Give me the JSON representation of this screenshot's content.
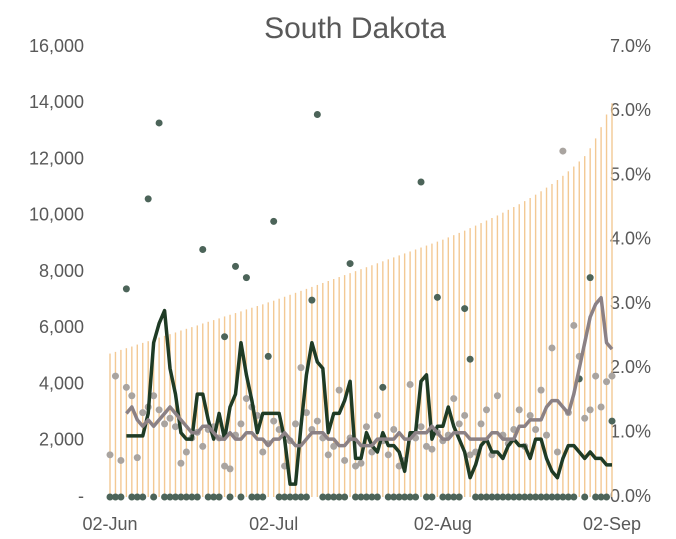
{
  "chart_data": {
    "type": "combo",
    "title": "South Dakota",
    "categories": [
      "02-Jun",
      null,
      null,
      null,
      null,
      null,
      null,
      null,
      null,
      null,
      null,
      null,
      null,
      null,
      null,
      null,
      null,
      null,
      null,
      null,
      null,
      null,
      null,
      null,
      null,
      null,
      null,
      null,
      null,
      null,
      "02-Jul",
      null,
      null,
      null,
      null,
      null,
      null,
      null,
      null,
      null,
      null,
      null,
      null,
      null,
      null,
      null,
      null,
      null,
      null,
      null,
      null,
      null,
      null,
      null,
      null,
      null,
      null,
      null,
      null,
      null,
      null,
      "02-Aug",
      null,
      null,
      null,
      null,
      null,
      null,
      null,
      null,
      null,
      null,
      null,
      null,
      null,
      null,
      null,
      null,
      null,
      null,
      null,
      null,
      null,
      null,
      null,
      null,
      null,
      null,
      null,
      null,
      null,
      null,
      "02-Sep"
    ],
    "ylim": [
      0,
      16000
    ],
    "yticks": [
      {
        "value": 0,
        "label": "-"
      },
      {
        "value": 2000,
        "label": "2,000"
      },
      {
        "value": 4000,
        "label": "4,000"
      },
      {
        "value": 6000,
        "label": "6,000"
      },
      {
        "value": 8000,
        "label": "8,000"
      },
      {
        "value": 10000,
        "label": "10,000"
      },
      {
        "value": 12000,
        "label": "12,000"
      },
      {
        "value": 14000,
        "label": "14,000"
      },
      {
        "value": 16000,
        "label": "16,000"
      }
    ],
    "y2lim": [
      0,
      7
    ],
    "y2ticks": [
      {
        "value": 0,
        "label": "0.0%"
      },
      {
        "value": 1,
        "label": "1.0%"
      },
      {
        "value": 2,
        "label": "2.0%"
      },
      {
        "value": 3,
        "label": "3.0%"
      },
      {
        "value": 4,
        "label": "4.0%"
      },
      {
        "value": 5,
        "label": "5.0%"
      },
      {
        "value": 6,
        "label": "6.0%"
      },
      {
        "value": 7,
        "label": "7.0%"
      }
    ],
    "series": [
      {
        "kind": "bar",
        "color": "#f3c994",
        "values": [
          5100,
          5160,
          5230,
          5290,
          5350,
          5420,
          5480,
          5540,
          5600,
          5670,
          5730,
          5790,
          5850,
          5920,
          5980,
          6040,
          6100,
          6170,
          6230,
          6290,
          6350,
          6420,
          6480,
          6540,
          6600,
          6670,
          6730,
          6790,
          6850,
          6920,
          6980,
          7050,
          7120,
          7190,
          7260,
          7330,
          7400,
          7470,
          7540,
          7610,
          7680,
          7750,
          7820,
          7890,
          7960,
          8030,
          8100,
          8170,
          8240,
          8310,
          8380,
          8450,
          8520,
          8590,
          8660,
          8730,
          8800,
          8870,
          8940,
          9010,
          9080,
          9150,
          9230,
          9310,
          9390,
          9470,
          9560,
          9650,
          9740,
          9830,
          9920,
          10010,
          10110,
          10210,
          10310,
          10410,
          10520,
          10630,
          10750,
          10870,
          11000,
          11130,
          11270,
          11420,
          11580,
          11750,
          11930,
          12120,
          12400,
          12750,
          13150,
          13600,
          14000
        ]
      },
      {
        "kind": "dot",
        "color": "#a9a4a0",
        "values": [
          1500,
          4300,
          1300,
          3900,
          3600,
          1400,
          3000,
          3200,
          3600,
          3100,
          2600,
          2800,
          2500,
          1200,
          1600,
          2100,
          2300,
          1800,
          2400,
          2500,
          2100,
          1100,
          1000,
          2200,
          2600,
          3500,
          3200,
          2900,
          1600,
          1900,
          2700,
          2400,
          1100,
          2000,
          2600,
          4600,
          3000,
          2400,
          2700,
          2100,
          1500,
          1800,
          3800,
          1300,
          2100,
          1100,
          1200,
          2500,
          1600,
          2900,
          2000,
          1500,
          2400,
          1100,
          1300,
          4000,
          2100,
          2500,
          1800,
          1700,
          2300,
          2000,
          2200,
          3500,
          2600,
          2900,
          1500,
          1600,
          2600,
          3100,
          1500,
          3600,
          2200,
          1900,
          2400,
          3100,
          1800,
          2900,
          2400,
          3800,
          2200,
          5300,
          1600,
          12300,
          3000,
          6100,
          5000,
          2800,
          3100,
          4300,
          3200,
          4100,
          4300
        ]
      },
      {
        "kind": "dot",
        "color": "#4c6459",
        "values": [
          0,
          0,
          0,
          7400,
          0,
          0,
          0,
          10600,
          0,
          13300,
          0,
          0,
          0,
          0,
          0,
          0,
          0,
          8800,
          0,
          0,
          0,
          5700,
          0,
          8200,
          0,
          7800,
          0,
          0,
          0,
          5000,
          9800,
          0,
          0,
          0,
          0,
          0,
          0,
          7000,
          13600,
          0,
          0,
          0,
          0,
          0,
          8300,
          0,
          0,
          0,
          0,
          0,
          3900,
          0,
          0,
          0,
          0,
          0,
          0,
          11200,
          0,
          0,
          7100,
          0,
          0,
          0,
          0,
          6700,
          4900,
          0,
          0,
          0,
          0,
          0,
          0,
          0,
          0,
          0,
          0,
          0,
          0,
          0,
          0,
          0,
          0,
          0,
          0,
          0,
          4200,
          0,
          7800,
          0,
          0,
          0,
          2700
        ]
      },
      {
        "kind": "line",
        "axis": "y2",
        "color": "#1f3b25",
        "values": [
          null,
          null,
          null,
          0.95,
          0.95,
          0.95,
          0.95,
          1.3,
          2.4,
          2.7,
          2.9,
          2.0,
          1.6,
          1.0,
          0.9,
          0.9,
          1.6,
          1.6,
          1.2,
          0.9,
          1.3,
          0.9,
          1.4,
          1.6,
          2.4,
          1.9,
          1.5,
          1.0,
          1.3,
          1.3,
          1.3,
          1.3,
          0.9,
          0.2,
          0.2,
          1.1,
          1.9,
          2.4,
          2.1,
          2.0,
          1.0,
          1.3,
          1.3,
          1.5,
          1.8,
          0.6,
          0.6,
          1.0,
          0.8,
          0.7,
          1.0,
          0.8,
          0.8,
          0.7,
          0.4,
          1.0,
          1.0,
          1.8,
          1.9,
          0.9,
          1.1,
          1.1,
          1.4,
          1.1,
          0.9,
          0.7,
          0.3,
          0.5,
          0.8,
          0.9,
          0.7,
          0.7,
          0.6,
          0.8,
          0.9,
          0.8,
          0.8,
          0.6,
          0.9,
          0.9,
          0.6,
          0.4,
          0.3,
          0.6,
          0.8,
          0.8,
          0.7,
          0.6,
          0.7,
          0.6,
          0.6,
          0.5,
          0.5
        ]
      },
      {
        "kind": "line",
        "axis": "y2",
        "color": "#8b8185",
        "values": [
          null,
          null,
          null,
          1.3,
          1.4,
          1.2,
          1.1,
          1.2,
          1.1,
          1.2,
          1.3,
          1.4,
          1.3,
          1.2,
          1.1,
          1.0,
          1.0,
          1.1,
          1.1,
          1.0,
          0.9,
          0.9,
          1.0,
          0.9,
          0.9,
          1.0,
          1.0,
          0.9,
          0.9,
          0.8,
          0.9,
          0.9,
          1.0,
          0.9,
          0.8,
          0.8,
          0.9,
          1.0,
          1.0,
          1.0,
          0.9,
          0.9,
          0.8,
          0.8,
          0.9,
          0.9,
          0.8,
          0.8,
          0.8,
          0.9,
          0.9,
          0.9,
          0.9,
          1.0,
          0.9,
          0.9,
          1.0,
          1.0,
          1.0,
          1.1,
          1.0,
          0.9,
          0.9,
          1.0,
          1.0,
          1.0,
          0.9,
          0.9,
          0.9,
          0.9,
          1.0,
          1.0,
          0.9,
          0.9,
          0.9,
          1.1,
          1.1,
          1.2,
          1.2,
          1.2,
          1.4,
          1.5,
          1.5,
          1.4,
          1.3,
          1.6,
          2.0,
          2.4,
          2.8,
          3.0,
          3.1,
          2.4,
          2.3
        ]
      }
    ]
  }
}
